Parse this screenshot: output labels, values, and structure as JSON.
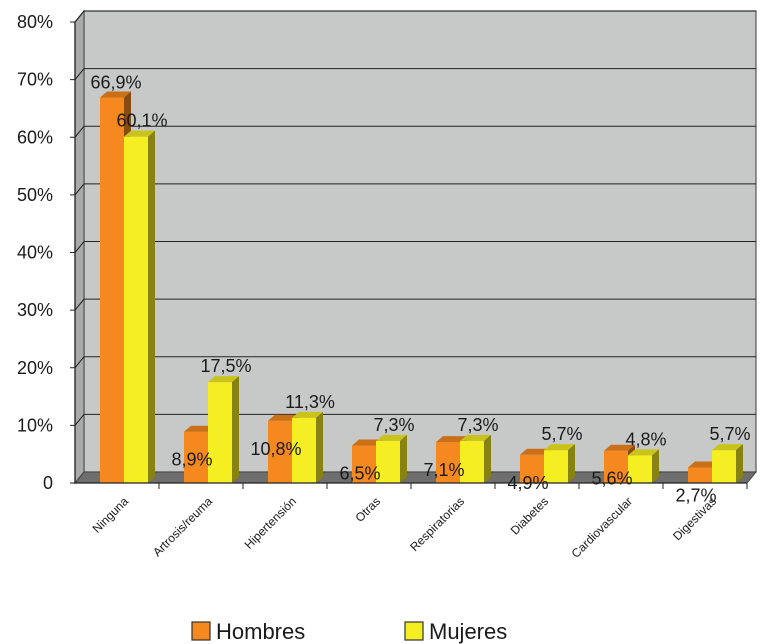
{
  "chart_data": {
    "type": "bar",
    "categories": [
      "Ninguna",
      "Artrosis/reuma",
      "Hipertensión",
      "Otras",
      "Respiratorias",
      "Diabetes",
      "Cardiovascular",
      "Digestivas"
    ],
    "series": [
      {
        "name": "Hombres",
        "values": [
          66.9,
          8.9,
          10.8,
          6.5,
          7.1,
          4.9,
          5.6,
          2.7
        ],
        "labels": [
          "66,9%",
          "8,9%",
          "10,8%",
          "6,5%",
          "7,1%",
          "4,9%",
          "5,6%",
          "2,7%"
        ],
        "color": "#f5891f"
      },
      {
        "name": "Mujeres",
        "values": [
          60.1,
          17.5,
          11.3,
          7.3,
          7.3,
          5.7,
          4.8,
          5.7
        ],
        "labels": [
          "60,1%",
          "17,5%",
          "11,3%",
          "7,3%",
          "7,3%",
          "5,7%",
          "4,8%",
          "5,7%"
        ],
        "color": "#f5ee22"
      }
    ],
    "yticks": [
      0,
      10,
      20,
      30,
      40,
      50,
      60,
      70,
      80
    ],
    "ytick_labels": [
      "0",
      "10%",
      "20%",
      "30%",
      "40%",
      "50%",
      "60%",
      "70%",
      "80%"
    ],
    "ylim": [
      0,
      80
    ],
    "grid": true,
    "legend_position": "bottom",
    "plot_background": "#c7c9c9",
    "floor_color": "#6e6e6e"
  }
}
